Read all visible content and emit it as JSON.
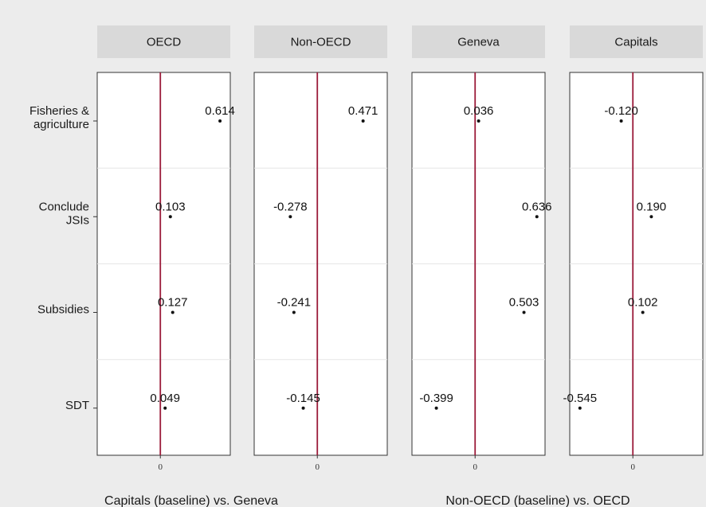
{
  "chart_data": {
    "type": "scatter",
    "panels": [
      {
        "name": "OECD",
        "values": [
          0.614,
          0.103,
          0.127,
          0.049
        ],
        "labels": [
          "0.614",
          "0.103",
          "0.127",
          "0.049"
        ]
      },
      {
        "name": "Non-OECD",
        "values": [
          0.471,
          -0.278,
          -0.241,
          -0.145
        ],
        "labels": [
          "0.471",
          "-0.278",
          "-0.241",
          "-0.145"
        ]
      },
      {
        "name": "Geneva",
        "values": [
          0.036,
          0.636,
          0.503,
          -0.399
        ],
        "labels": [
          "0.036",
          "0.636",
          "0.503",
          "-0.399"
        ]
      },
      {
        "name": "Capitals",
        "values": [
          -0.12,
          0.19,
          0.102,
          -0.545
        ],
        "labels": [
          "-0.120",
          "0.190",
          "0.102",
          "-0.545"
        ]
      }
    ],
    "categories": [
      [
        "Fisheries &",
        "agriculture"
      ],
      [
        "Conclude",
        "JSIs"
      ],
      [
        "Subsidies"
      ],
      [
        "SDT"
      ]
    ],
    "xlim": [
      -0.65,
      0.72
    ],
    "x_ticks": [
      0
    ],
    "x_tick_labels": [
      "0"
    ],
    "reference_line": 0,
    "reference_line_color": "#9b1b3a",
    "point_color": "#111111",
    "panel_background": "#ffffff",
    "strip_background": "#d9d9d9",
    "bottom_labels": [
      "Capitals (baseline) vs. Geneva",
      "Non-OECD (baseline) vs. OECD"
    ],
    "grid": true,
    "legend": "none"
  }
}
